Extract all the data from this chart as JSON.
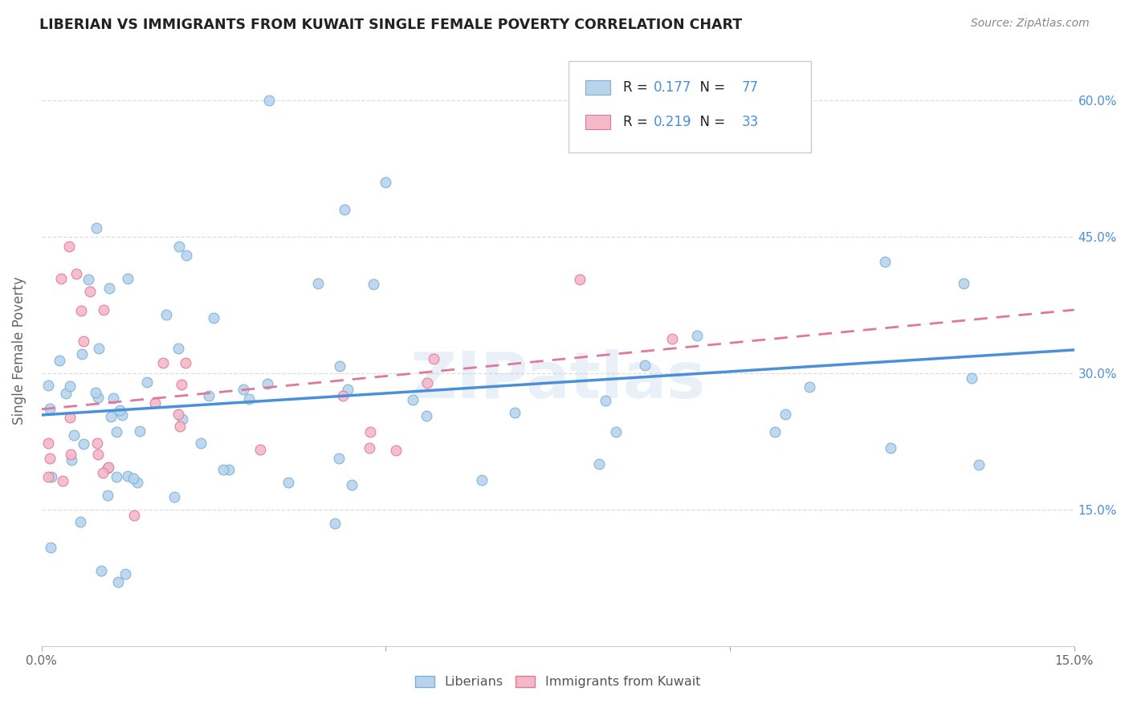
{
  "title": "LIBERIAN VS IMMIGRANTS FROM KUWAIT SINGLE FEMALE POVERTY CORRELATION CHART",
  "source": "Source: ZipAtlas.com",
  "ylabel": "Single Female Poverty",
  "legend_label1": "Liberians",
  "legend_label2": "Immigrants from Kuwait",
  "R1": 0.177,
  "N1": 77,
  "R2": 0.219,
  "N2": 33,
  "color_blue_fill": "#b8d4ec",
  "color_blue_edge": "#7ab0d8",
  "color_blue_line": "#4a90d9",
  "color_blue_text": "#4a90d9",
  "color_pink_fill": "#f5b8c8",
  "color_pink_edge": "#e07898",
  "color_pink_line": "#e07898",
  "xlim": [
    0.0,
    0.15
  ],
  "ylim": [
    0.0,
    0.65
  ],
  "ytick_positions": [
    0.15,
    0.3,
    0.45,
    0.6
  ],
  "ytick_labels": [
    "15.0%",
    "30.0%",
    "45.0%",
    "60.0%"
  ],
  "xtick_positions": [
    0.0,
    0.05,
    0.1,
    0.15
  ],
  "xtick_labels": [
    "0.0%",
    "",
    "",
    "15.0%"
  ],
  "background": "#ffffff",
  "grid_color": "#dddddd",
  "watermark": "ZIPatlas"
}
